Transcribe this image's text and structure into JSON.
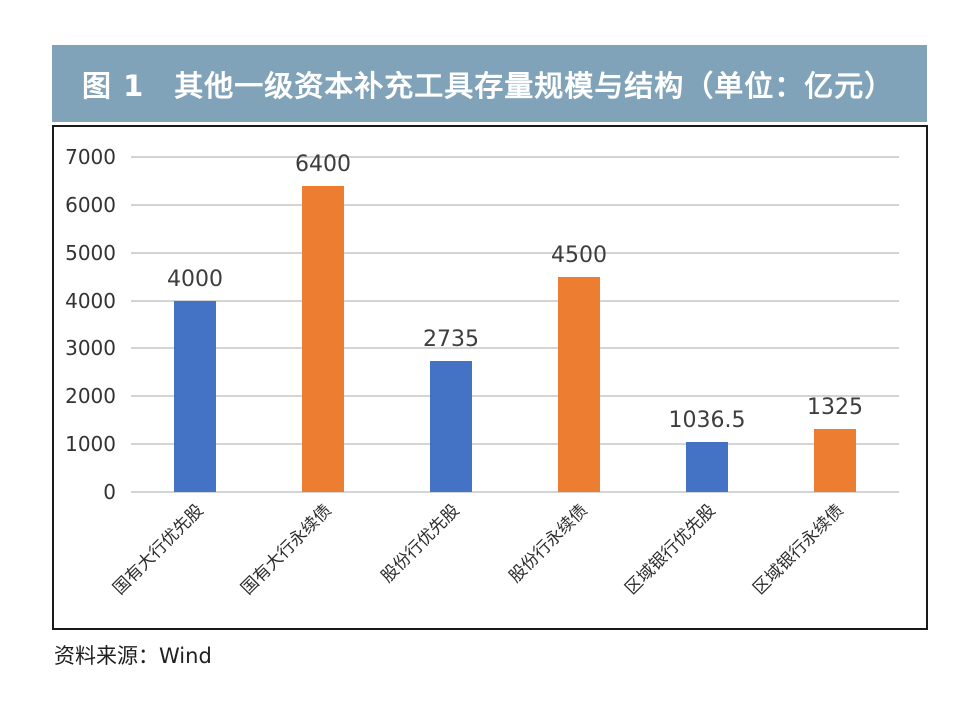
{
  "header": {
    "title": "图 1　其他一级资本补充工具存量规模与结构（单位：亿元）",
    "band_color": "#81A3B9",
    "text_color": "#FFFFFF"
  },
  "chart_data": {
    "type": "bar",
    "title": "其他一级资本补充工具存量规模与结构",
    "unit": "亿元",
    "categories": [
      "国有大行优先股",
      "国有大行永续债",
      "股份行优先股",
      "股份行永续债",
      "区域银行优先股",
      "区域银行永续债"
    ],
    "values": [
      4000,
      6400,
      2735,
      4500,
      1036.5,
      1325
    ],
    "value_labels": [
      "4000",
      "6400",
      "2735",
      "4500",
      "1036.5",
      "1325"
    ],
    "bar_colors": [
      "#4472C4",
      "#ED7D31",
      "#4472C4",
      "#ED7D31",
      "#4472C4",
      "#ED7D31"
    ],
    "y_ticks": [
      0,
      1000,
      2000,
      3000,
      4000,
      5000,
      6000,
      7000
    ],
    "ylim": [
      0,
      7000
    ],
    "xlabel": "",
    "ylabel": "",
    "grid": true,
    "gridline_color": "#D4D4D4",
    "legend": false
  },
  "source": {
    "text": "资料来源：Wind"
  }
}
